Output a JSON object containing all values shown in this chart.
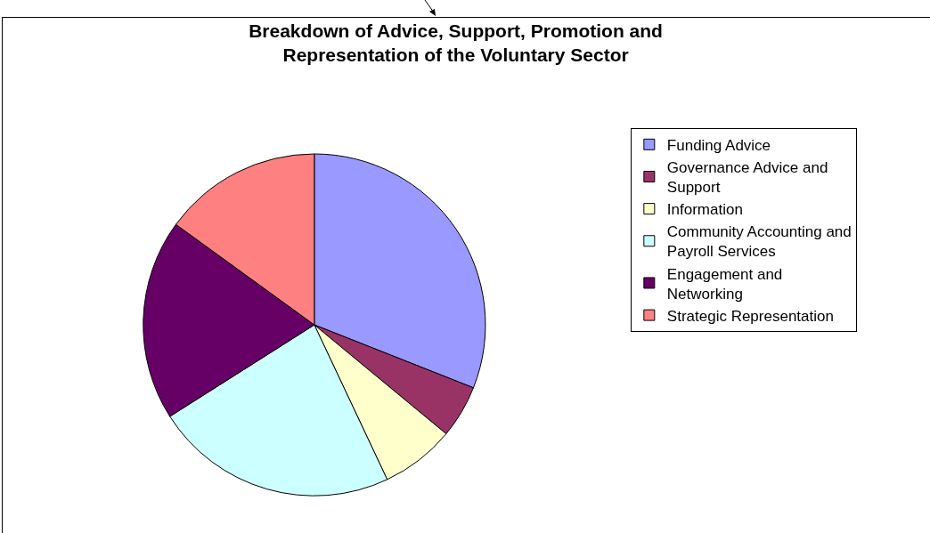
{
  "chart_data": {
    "type": "pie",
    "title": "Breakdown of Advice, Support, Promotion and Representation of the Voluntary Sector",
    "categories": [
      "Funding Advice",
      "Governance Advice and Support",
      "Information",
      "Community Accounting and Payroll Services",
      "Engagement and Networking",
      "Strategic Representation"
    ],
    "values": [
      31,
      5,
      7,
      23,
      19,
      15
    ],
    "colors": [
      "#9999ff",
      "#993366",
      "#ffffcc",
      "#ccffff",
      "#660066",
      "#ff8080"
    ],
    "legend": "right"
  }
}
